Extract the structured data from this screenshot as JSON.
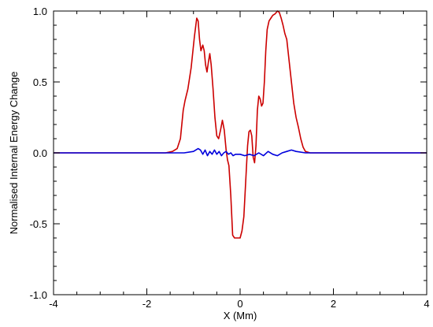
{
  "chart_data": {
    "type": "line",
    "title": "",
    "xlabel": "X (Mm)",
    "ylabel": "Normalised Internal Energy Change",
    "xlim": [
      -4,
      4
    ],
    "ylim": [
      -1.0,
      1.0
    ],
    "x_ticks": [
      -4,
      -2,
      0,
      2,
      4
    ],
    "x_tick_labels": [
      "-4",
      "-2",
      "0",
      "2",
      "4"
    ],
    "y_ticks": [
      -1.0,
      -0.5,
      0.0,
      0.5,
      1.0
    ],
    "y_tick_labels": [
      "-1.0",
      "-0.5",
      "0.0",
      "0.5",
      "1.0"
    ],
    "grid": false,
    "legend": "none",
    "series": [
      {
        "color": "#cc0000",
        "x": [
          -4.0,
          -2.0,
          -1.6,
          -1.45,
          -1.35,
          -1.28,
          -1.22,
          -1.18,
          -1.12,
          -1.05,
          -0.98,
          -0.93,
          -0.9,
          -0.87,
          -0.84,
          -0.8,
          -0.77,
          -0.74,
          -0.71,
          -0.68,
          -0.65,
          -0.62,
          -0.58,
          -0.54,
          -0.5,
          -0.46,
          -0.42,
          -0.38,
          -0.34,
          -0.3,
          -0.27,
          -0.24,
          -0.2,
          -0.16,
          -0.12,
          -0.08,
          -0.04,
          0.0,
          0.04,
          0.08,
          0.12,
          0.16,
          0.19,
          0.22,
          0.25,
          0.28,
          0.31,
          0.34,
          0.37,
          0.4,
          0.43,
          0.46,
          0.49,
          0.52,
          0.55,
          0.58,
          0.62,
          0.66,
          0.7,
          0.75,
          0.8,
          0.84,
          0.88,
          0.92,
          0.96,
          1.0,
          1.05,
          1.1,
          1.15,
          1.2,
          1.25,
          1.3,
          1.35,
          1.4,
          1.5,
          1.7,
          2.0,
          4.0
        ],
        "y": [
          0.0,
          0.0,
          0.0,
          0.01,
          0.03,
          0.1,
          0.3,
          0.37,
          0.45,
          0.6,
          0.82,
          0.95,
          0.93,
          0.8,
          0.72,
          0.76,
          0.72,
          0.62,
          0.57,
          0.64,
          0.7,
          0.62,
          0.45,
          0.25,
          0.12,
          0.1,
          0.16,
          0.23,
          0.16,
          0.02,
          -0.05,
          -0.09,
          -0.3,
          -0.58,
          -0.6,
          -0.6,
          -0.6,
          -0.6,
          -0.55,
          -0.45,
          -0.2,
          0.05,
          0.15,
          0.16,
          0.12,
          -0.03,
          -0.07,
          0.05,
          0.3,
          0.4,
          0.38,
          0.33,
          0.35,
          0.5,
          0.72,
          0.87,
          0.93,
          0.95,
          0.97,
          0.98,
          1.0,
          0.99,
          0.95,
          0.9,
          0.84,
          0.8,
          0.65,
          0.5,
          0.35,
          0.25,
          0.18,
          0.1,
          0.04,
          0.01,
          0.0,
          0.0,
          0.0,
          0.0
        ]
      },
      {
        "color": "#0000dd",
        "x": [
          -4.0,
          -2.0,
          -1.2,
          -1.0,
          -0.9,
          -0.85,
          -0.8,
          -0.75,
          -0.7,
          -0.65,
          -0.6,
          -0.55,
          -0.5,
          -0.45,
          -0.4,
          -0.35,
          -0.3,
          -0.25,
          -0.2,
          -0.15,
          -0.1,
          0.0,
          0.1,
          0.2,
          0.3,
          0.4,
          0.5,
          0.6,
          0.7,
          0.8,
          0.9,
          1.0,
          1.1,
          1.2,
          1.4,
          2.0,
          4.0
        ],
        "y": [
          0.0,
          0.0,
          0.0,
          0.01,
          0.03,
          0.02,
          -0.01,
          0.02,
          -0.02,
          0.01,
          -0.01,
          0.02,
          -0.01,
          0.01,
          -0.02,
          0.0,
          0.01,
          -0.01,
          0.0,
          -0.02,
          -0.01,
          -0.01,
          -0.02,
          -0.01,
          -0.02,
          0.0,
          -0.02,
          0.01,
          -0.01,
          -0.02,
          0.0,
          0.01,
          0.02,
          0.01,
          0.0,
          0.0,
          0.0
        ]
      }
    ]
  }
}
